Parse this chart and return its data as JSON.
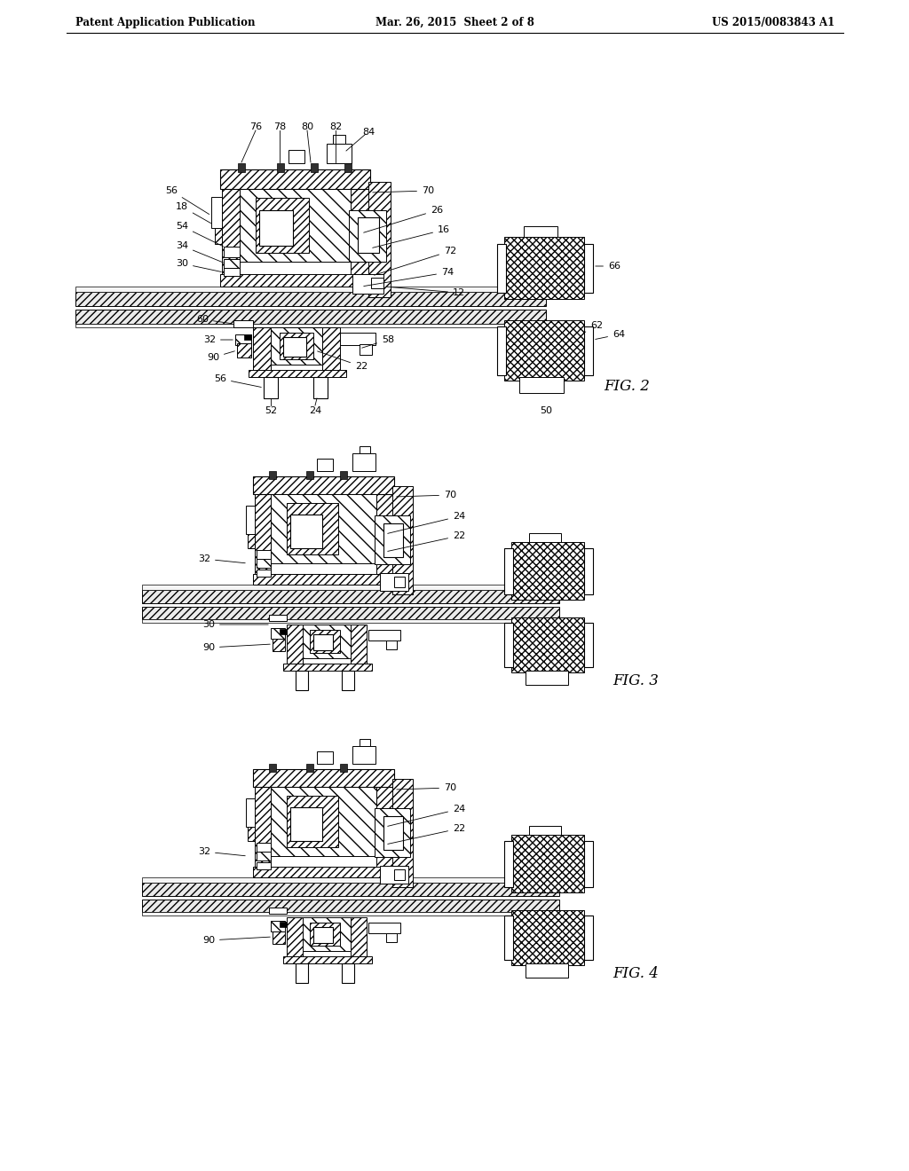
{
  "background_color": "#ffffff",
  "header_left": "Patent Application Publication",
  "header_center": "Mar. 26, 2015  Sheet 2 of 8",
  "header_right": "US 2015/0083843 A1",
  "text_color": "#000000",
  "line_color": "#000000",
  "fig2_label": "FIG. 2",
  "fig3_label": "FIG. 3",
  "fig4_label": "FIG. 4"
}
